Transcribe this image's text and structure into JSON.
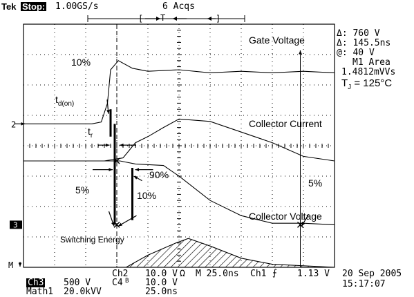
{
  "header": {
    "brand": "Tek",
    "run_state": "Stop:",
    "sample_rate": "1.00GS/s",
    "acqs": "6 Acqs"
  },
  "trigger_bar": {
    "left_bracket": "[",
    "trigger_glyph": "T",
    "right_bracket": "]"
  },
  "readouts": {
    "delta_v": "Δ: 760 V",
    "delta_t": "Δ: 145.5ns",
    "at": "@: 40 V",
    "math_label": "M1 Area",
    "math_value": "1.4812mVVs",
    "tj": "T",
    "tj_sub": "J",
    "tj_val": " = 125°C"
  },
  "markers": {
    "ch2": "2",
    "ch3": "3",
    "math": "M"
  },
  "bottom": {
    "ch2": "Ch2",
    "ch2_scale": "10.0 V",
    "ohm": "Ω",
    "timebase": "M 25.0ns",
    "ch1_trig": "Ch1",
    "trig_level": "1.13 V",
    "date": "20 Sep 2005",
    "ch3_label": "Ch3",
    "ch3_scale": "500 V",
    "ch4": "C4",
    "ch4_scale": "10.0 V",
    "math1": "Math1",
    "math1_scale": "20.0kVV",
    "math1_time": "25.0ns",
    "time": "15:17:07"
  },
  "chart_data": {
    "type": "line",
    "x_unit": "ns",
    "x_per_div": 25,
    "divisions": [
      10,
      8
    ],
    "series": [
      {
        "name": "Gate Voltage",
        "points": [
          [
            0,
            0.72
          ],
          [
            2.2,
            0.72
          ],
          [
            2.5,
            0.78
          ],
          [
            2.7,
            1.4
          ],
          [
            2.8,
            2.5
          ],
          [
            3.05,
            2.8
          ],
          [
            3.5,
            2.55
          ],
          [
            4,
            2.45
          ],
          [
            5,
            2.5
          ],
          [
            6,
            2.4
          ],
          [
            7,
            2.45
          ],
          [
            8,
            2.4
          ],
          [
            9,
            2.45
          ],
          [
            10,
            2.4
          ]
        ]
      },
      {
        "name": "Collector Current",
        "points": [
          [
            0,
            -0.5
          ],
          [
            2.6,
            -0.5
          ],
          [
            3.2,
            -0.4
          ],
          [
            3.6,
            0.1
          ],
          [
            4,
            0.3
          ],
          [
            4.5,
            0.6
          ],
          [
            5,
            0.88
          ],
          [
            6,
            0.8
          ],
          [
            7,
            0.45
          ],
          [
            8,
            0.1
          ],
          [
            9,
            -0.35
          ],
          [
            10,
            -0.5
          ]
        ]
      },
      {
        "name": "Collector Voltage",
        "points": [
          [
            0,
            -0.5
          ],
          [
            3.1,
            -0.5
          ],
          [
            3.6,
            -0.6
          ],
          [
            4.5,
            -0.65
          ],
          [
            5,
            -1.0
          ],
          [
            6,
            -1.8
          ],
          [
            7,
            -2.3
          ],
          [
            8,
            -2.55
          ],
          [
            9,
            -2.55
          ],
          [
            10,
            -2.6
          ]
        ]
      },
      {
        "name": "Switching Energy",
        "points": [
          [
            0,
            -4
          ],
          [
            3.3,
            -4
          ],
          [
            4,
            -3.6
          ],
          [
            4.9,
            -3.2
          ],
          [
            5.3,
            -3.05
          ],
          [
            6,
            -3.3
          ],
          [
            7,
            -3.7
          ],
          [
            8,
            -3.9
          ],
          [
            10,
            -4
          ]
        ]
      }
    ],
    "labels": {
      "gate": "Gate Voltage",
      "current": "Collector Current",
      "voltage": "Collector Voltage",
      "energy": "Switching Energy",
      "p10a": "10%",
      "tdon": "t",
      "tdon_sub": "d(on)",
      "tr": "t",
      "tr_sub": "r",
      "p90": "90%",
      "p5a": "5%",
      "p10b": "10%",
      "p5b": "5%"
    }
  }
}
